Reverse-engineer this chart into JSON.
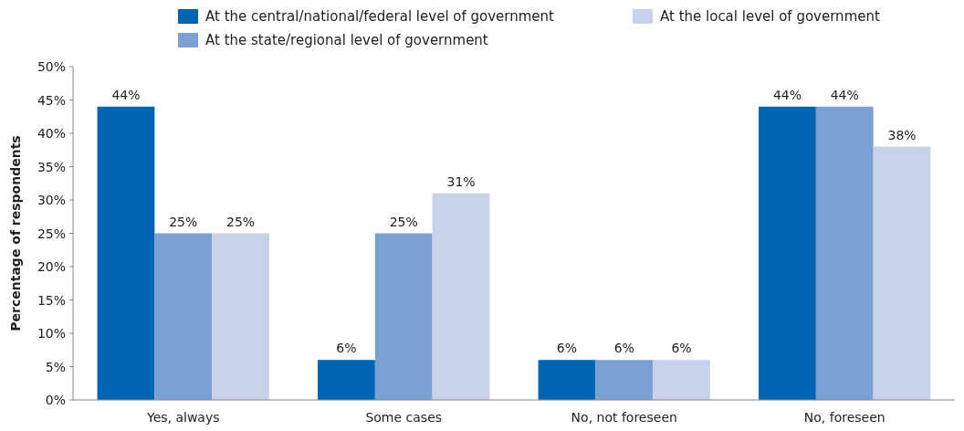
{
  "chart_data": {
    "type": "bar",
    "ylabel": "Percentage of respondents",
    "categories": [
      "Yes, always",
      "Some cases",
      "No, not foreseen",
      "No, foreseen"
    ],
    "series": [
      {
        "name": "At the central/national/federal level of government",
        "color": "#0066b3",
        "values": [
          44,
          6,
          6,
          44
        ],
        "value_labels": [
          "44%",
          "6%",
          "6%",
          "44%"
        ]
      },
      {
        "name": "At the state/regional level of government",
        "color": "#7ba0d4",
        "values": [
          25,
          25,
          6,
          44
        ],
        "value_labels": [
          "25%",
          "25%",
          "6%",
          "44%"
        ]
      },
      {
        "name": "At the local level of government",
        "color": "#c8d3ea",
        "values": [
          25,
          31,
          6,
          38
        ],
        "value_labels": [
          "25%",
          "31%",
          "6%",
          "38%"
        ]
      }
    ],
    "ylim": [
      0,
      50
    ],
    "yticks": [
      {
        "value": 0,
        "label": "0%"
      },
      {
        "value": 5,
        "label": "5%"
      },
      {
        "value": 10,
        "label": "10%"
      },
      {
        "value": 15,
        "label": "15%"
      },
      {
        "value": 20,
        "label": "20%"
      },
      {
        "value": 25,
        "label": "25%"
      },
      {
        "value": 30,
        "label": "30%"
      },
      {
        "value": 35,
        "label": "35%"
      },
      {
        "value": 40,
        "label": "40%"
      },
      {
        "value": 45,
        "label": "45%"
      },
      {
        "value": 50,
        "label": "50%"
      }
    ],
    "grid": false,
    "legend": "top"
  }
}
